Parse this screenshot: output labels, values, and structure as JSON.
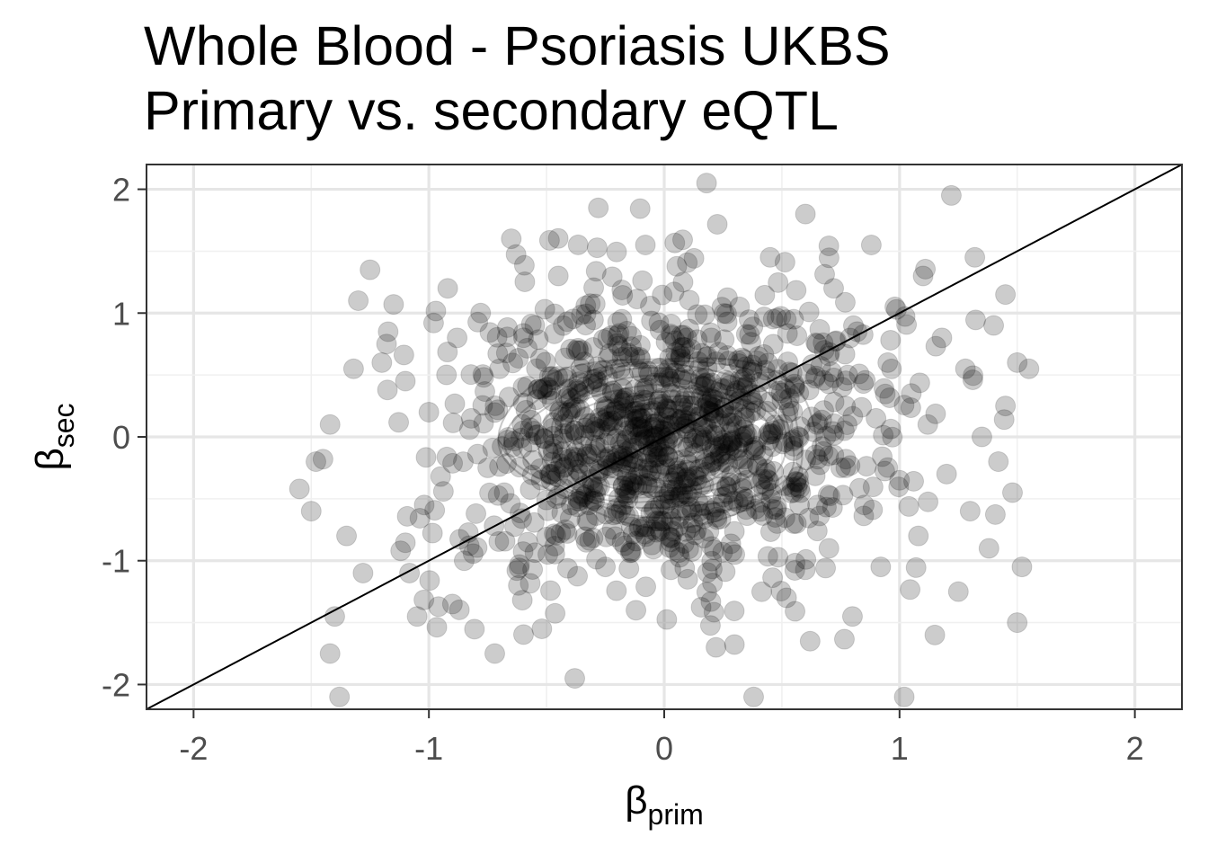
{
  "chart_data": {
    "type": "scatter",
    "title": "Whole Blood - Psoriasis UKBS",
    "subtitle": "Primary vs. secondary eQTL",
    "xlabel": {
      "symbol": "β",
      "subscript": "prim"
    },
    "ylabel": {
      "symbol": "β",
      "subscript": "sec"
    },
    "xlim": [
      -2.2,
      2.2
    ],
    "ylim": [
      -2.2,
      2.2
    ],
    "x_ticks": [
      -2,
      -1,
      0,
      1,
      2
    ],
    "y_ticks": [
      -2,
      -1,
      0,
      1,
      2
    ],
    "x_tick_labels": [
      "-2",
      "-1",
      "0",
      "1",
      "2"
    ],
    "y_tick_labels": [
      "-2",
      "-1",
      "0",
      "1",
      "2"
    ],
    "grid": true,
    "reference_line": {
      "slope": 1,
      "intercept": 0
    },
    "density_contours": true,
    "point_color": "#000000",
    "point_alpha": 0.2,
    "contour_color": "#c8c8c8",
    "points_spread": {
      "x_sd": 0.45,
      "y_sd": 0.6,
      "correlation": 0.1
    },
    "points": [
      [
        -1.55,
        -0.42
      ],
      [
        -1.5,
        -0.6
      ],
      [
        -1.48,
        -0.2
      ],
      [
        -1.45,
        -0.18
      ],
      [
        -1.42,
        0.1
      ],
      [
        -1.4,
        -1.45
      ],
      [
        -1.42,
        -1.75
      ],
      [
        -1.38,
        -2.1
      ],
      [
        -1.35,
        -0.8
      ],
      [
        -1.32,
        0.55
      ],
      [
        -1.3,
        1.1
      ],
      [
        -1.28,
        -1.1
      ],
      [
        -1.25,
        1.35
      ],
      [
        -1.2,
        0.6
      ],
      [
        -1.18,
        0.75
      ],
      [
        -1.15,
        1.07
      ],
      [
        -1.12,
        -0.92
      ],
      [
        -1.1,
        0.45
      ],
      [
        -1.05,
        -1.45
      ],
      [
        -1.02,
        -0.55
      ],
      [
        -1.0,
        0.2
      ],
      [
        -0.98,
        0.92
      ],
      [
        -0.95,
        -0.32
      ],
      [
        -0.92,
        1.2
      ],
      [
        -0.9,
        -1.35
      ],
      [
        -0.88,
        0.8
      ],
      [
        -0.85,
        -1.0
      ],
      [
        -0.82,
        0.15
      ],
      [
        -0.8,
        -0.62
      ],
      [
        -0.78,
        1.0
      ],
      [
        -0.75,
        -0.25
      ],
      [
        -0.72,
        -1.75
      ],
      [
        -0.7,
        0.55
      ],
      [
        -0.68,
        -0.45
      ],
      [
        -0.65,
        1.6
      ],
      [
        -0.62,
        -1.2
      ],
      [
        -0.6,
        0.05
      ],
      [
        -0.58,
        -0.85
      ],
      [
        -0.55,
        0.9
      ],
      [
        -0.52,
        -1.55
      ],
      [
        -0.5,
        0.4
      ],
      [
        -0.48,
        -0.3
      ],
      [
        -0.45,
        1.3
      ],
      [
        -0.42,
        -0.75
      ],
      [
        -0.4,
        0.2
      ],
      [
        -0.38,
        -1.95
      ],
      [
        -0.35,
        0.7
      ],
      [
        -0.32,
        -0.55
      ],
      [
        -0.3,
        0.05
      ],
      [
        -0.28,
        1.85
      ],
      [
        -0.25,
        -1.05
      ],
      [
        -0.22,
        0.35
      ],
      [
        -0.2,
        -0.2
      ],
      [
        -0.18,
        0.95
      ],
      [
        -0.15,
        -0.45
      ],
      [
        -0.12,
        -1.4
      ],
      [
        -0.1,
        0.15
      ],
      [
        -0.08,
        1.55
      ],
      [
        -0.05,
        -0.1
      ],
      [
        -0.02,
        -0.75
      ],
      [
        0.0,
        0.05
      ],
      [
        0.02,
        0.55
      ],
      [
        0.05,
        -0.3
      ],
      [
        0.08,
        1.25
      ],
      [
        0.1,
        -1.15
      ],
      [
        0.12,
        0.25
      ],
      [
        0.15,
        -0.6
      ],
      [
        0.18,
        2.05
      ],
      [
        0.2,
        0.8
      ],
      [
        0.22,
        -1.7
      ],
      [
        0.25,
        -0.05
      ],
      [
        0.28,
        0.45
      ],
      [
        0.3,
        -0.95
      ],
      [
        0.32,
        1.05
      ],
      [
        0.35,
        -0.35
      ],
      [
        0.38,
        -2.1
      ],
      [
        0.4,
        0.65
      ],
      [
        0.42,
        -0.15
      ],
      [
        0.45,
        1.45
      ],
      [
        0.48,
        -0.7
      ],
      [
        0.5,
        0.3
      ],
      [
        0.52,
        -1.3
      ],
      [
        0.55,
        0.95
      ],
      [
        0.58,
        -0.45
      ],
      [
        0.6,
        1.8
      ],
      [
        0.62,
        -1.65
      ],
      [
        0.65,
        0.1
      ],
      [
        0.68,
        0.7
      ],
      [
        0.7,
        -0.9
      ],
      [
        0.72,
        1.2
      ],
      [
        0.75,
        -0.25
      ],
      [
        0.78,
        0.5
      ],
      [
        0.8,
        -1.45
      ],
      [
        0.82,
        0.85
      ],
      [
        0.85,
        -0.55
      ],
      [
        0.88,
        1.55
      ],
      [
        0.9,
        0.15
      ],
      [
        0.92,
        -1.05
      ],
      [
        0.95,
        0.6
      ],
      [
        0.98,
        1.05
      ],
      [
        1.0,
        -0.35
      ],
      [
        1.02,
        -2.1
      ],
      [
        1.05,
        0.35
      ],
      [
        1.08,
        -0.8
      ],
      [
        1.1,
        1.3
      ],
      [
        1.12,
        0.1
      ],
      [
        1.15,
        -1.6
      ],
      [
        1.18,
        0.8
      ],
      [
        1.2,
        -0.3
      ],
      [
        1.22,
        1.95
      ],
      [
        1.25,
        -1.25
      ],
      [
        1.28,
        0.55
      ],
      [
        1.3,
        -0.6
      ],
      [
        1.32,
        1.45
      ],
      [
        1.35,
        0.0
      ],
      [
        1.38,
        -0.9
      ],
      [
        1.4,
        0.9
      ],
      [
        1.42,
        -0.2
      ],
      [
        1.45,
        1.15
      ],
      [
        1.48,
        -0.45
      ],
      [
        1.5,
        0.6
      ],
      [
        1.52,
        -1.05
      ],
      [
        1.55,
        0.55
      ],
      [
        1.5,
        -1.5
      ],
      [
        1.45,
        0.25
      ]
    ]
  }
}
